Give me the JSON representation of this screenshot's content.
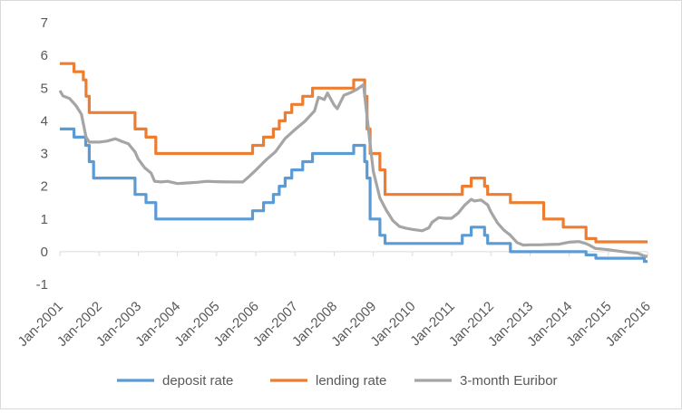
{
  "chart_data": {
    "type": "line",
    "title": "",
    "xlabel": "",
    "ylabel": "",
    "x_range": [
      2001.0,
      2016.0
    ],
    "ylim": [
      -1,
      7
    ],
    "y_ticks": [
      -1,
      0,
      1,
      2,
      3,
      4,
      5,
      6,
      7
    ],
    "x_ticks": [
      {
        "label": "Jan-2001",
        "value": 2001.0
      },
      {
        "label": "Jan-2002",
        "value": 2002.0
      },
      {
        "label": "Jan-2003",
        "value": 2003.0
      },
      {
        "label": "Jan-2004",
        "value": 2004.0
      },
      {
        "label": "Jan-2005",
        "value": 2005.0
      },
      {
        "label": "Jan-2006",
        "value": 2006.0
      },
      {
        "label": "Jan-2007",
        "value": 2007.0
      },
      {
        "label": "Jan-2008",
        "value": 2008.0
      },
      {
        "label": "Jan-2009",
        "value": 2009.0
      },
      {
        "label": "Jan-2010",
        "value": 2010.0
      },
      {
        "label": "Jan-2011",
        "value": 2011.0
      },
      {
        "label": "Jan-2012",
        "value": 2012.0
      },
      {
        "label": "Jan-2013",
        "value": 2013.0
      },
      {
        "label": "Jan-2014",
        "value": 2014.0
      },
      {
        "label": "Jan-2015",
        "value": 2015.0
      },
      {
        "label": "Jan-2016",
        "value": 2016.0
      }
    ],
    "grid": false,
    "legend_position": "bottom",
    "series": [
      {
        "name": "deposit rate",
        "color": "#5b9bd5",
        "step": true,
        "points": [
          [
            2001.0,
            3.75
          ],
          [
            2001.36,
            3.5
          ],
          [
            2001.5,
            3.5
          ],
          [
            2001.66,
            3.25
          ],
          [
            2001.75,
            2.75
          ],
          [
            2001.86,
            2.25
          ],
          [
            2002.92,
            1.75
          ],
          [
            2003.2,
            1.5
          ],
          [
            2003.45,
            1.0
          ],
          [
            2005.92,
            1.25
          ],
          [
            2006.2,
            1.5
          ],
          [
            2006.45,
            1.75
          ],
          [
            2006.6,
            2.0
          ],
          [
            2006.75,
            2.25
          ],
          [
            2006.92,
            2.5
          ],
          [
            2007.2,
            2.75
          ],
          [
            2007.45,
            3.0
          ],
          [
            2008.5,
            3.25
          ],
          [
            2008.78,
            2.75
          ],
          [
            2008.84,
            2.25
          ],
          [
            2008.92,
            1.0
          ],
          [
            2009.05,
            1.0
          ],
          [
            2009.17,
            0.5
          ],
          [
            2009.3,
            0.25
          ],
          [
            2011.27,
            0.5
          ],
          [
            2011.5,
            0.75
          ],
          [
            2011.84,
            0.5
          ],
          [
            2011.92,
            0.25
          ],
          [
            2012.5,
            0.0
          ],
          [
            2014.43,
            -0.1
          ],
          [
            2014.68,
            -0.2
          ],
          [
            2015.92,
            -0.3
          ],
          [
            2016.0,
            -0.3
          ]
        ]
      },
      {
        "name": "lending rate",
        "color": "#ed7d31",
        "step": true,
        "points": [
          [
            2001.0,
            5.75
          ],
          [
            2001.36,
            5.5
          ],
          [
            2001.6,
            5.25
          ],
          [
            2001.67,
            4.75
          ],
          [
            2001.75,
            4.25
          ],
          [
            2002.92,
            3.75
          ],
          [
            2003.2,
            3.5
          ],
          [
            2003.45,
            3.0
          ],
          [
            2005.92,
            3.25
          ],
          [
            2006.2,
            3.5
          ],
          [
            2006.45,
            3.75
          ],
          [
            2006.6,
            4.0
          ],
          [
            2006.75,
            4.25
          ],
          [
            2006.92,
            4.5
          ],
          [
            2007.2,
            4.75
          ],
          [
            2007.45,
            5.0
          ],
          [
            2008.5,
            5.25
          ],
          [
            2008.78,
            4.75
          ],
          [
            2008.84,
            3.75
          ],
          [
            2008.92,
            3.0
          ],
          [
            2009.05,
            3.0
          ],
          [
            2009.17,
            2.5
          ],
          [
            2009.3,
            1.75
          ],
          [
            2011.27,
            2.0
          ],
          [
            2011.5,
            2.25
          ],
          [
            2011.84,
            2.0
          ],
          [
            2011.92,
            1.75
          ],
          [
            2012.5,
            1.5
          ],
          [
            2013.35,
            1.0
          ],
          [
            2013.85,
            0.75
          ],
          [
            2014.43,
            0.4
          ],
          [
            2014.68,
            0.3
          ],
          [
            2016.0,
            0.3
          ]
        ]
      },
      {
        "name": "3-month Euribor",
        "color": "#a5a5a5",
        "step": false,
        "points": [
          [
            2001.0,
            4.92
          ],
          [
            2001.08,
            4.76
          ],
          [
            2001.25,
            4.68
          ],
          [
            2001.42,
            4.45
          ],
          [
            2001.55,
            4.2
          ],
          [
            2001.67,
            3.5
          ],
          [
            2001.75,
            3.35
          ],
          [
            2002.0,
            3.35
          ],
          [
            2002.2,
            3.38
          ],
          [
            2002.42,
            3.45
          ],
          [
            2002.58,
            3.37
          ],
          [
            2002.75,
            3.3
          ],
          [
            2002.92,
            3.05
          ],
          [
            2003.0,
            2.83
          ],
          [
            2003.17,
            2.56
          ],
          [
            2003.33,
            2.4
          ],
          [
            2003.42,
            2.15
          ],
          [
            2003.58,
            2.13
          ],
          [
            2003.75,
            2.15
          ],
          [
            2004.0,
            2.08
          ],
          [
            2004.25,
            2.1
          ],
          [
            2004.5,
            2.12
          ],
          [
            2004.75,
            2.15
          ],
          [
            2005.0,
            2.14
          ],
          [
            2005.33,
            2.13
          ],
          [
            2005.67,
            2.13
          ],
          [
            2005.83,
            2.3
          ],
          [
            2006.0,
            2.49
          ],
          [
            2006.25,
            2.79
          ],
          [
            2006.5,
            3.05
          ],
          [
            2006.75,
            3.46
          ],
          [
            2007.0,
            3.73
          ],
          [
            2007.25,
            3.98
          ],
          [
            2007.5,
            4.3
          ],
          [
            2007.6,
            4.72
          ],
          [
            2007.75,
            4.65
          ],
          [
            2007.83,
            4.85
          ],
          [
            2008.0,
            4.48
          ],
          [
            2008.08,
            4.37
          ],
          [
            2008.25,
            4.78
          ],
          [
            2008.42,
            4.86
          ],
          [
            2008.58,
            4.96
          ],
          [
            2008.75,
            5.1
          ],
          [
            2008.83,
            4.24
          ],
          [
            2008.92,
            3.29
          ],
          [
            2009.0,
            2.46
          ],
          [
            2009.17,
            1.64
          ],
          [
            2009.33,
            1.27
          ],
          [
            2009.5,
            0.95
          ],
          [
            2009.67,
            0.77
          ],
          [
            2009.83,
            0.72
          ],
          [
            2010.0,
            0.68
          ],
          [
            2010.25,
            0.64
          ],
          [
            2010.42,
            0.73
          ],
          [
            2010.5,
            0.9
          ],
          [
            2010.67,
            1.04
          ],
          [
            2010.83,
            1.02
          ],
          [
            2011.0,
            1.02
          ],
          [
            2011.17,
            1.18
          ],
          [
            2011.33,
            1.42
          ],
          [
            2011.5,
            1.6
          ],
          [
            2011.58,
            1.55
          ],
          [
            2011.75,
            1.58
          ],
          [
            2011.92,
            1.43
          ],
          [
            2012.0,
            1.22
          ],
          [
            2012.17,
            0.88
          ],
          [
            2012.33,
            0.66
          ],
          [
            2012.5,
            0.5
          ],
          [
            2012.67,
            0.28
          ],
          [
            2012.83,
            0.2
          ],
          [
            2013.0,
            0.21
          ],
          [
            2013.25,
            0.21
          ],
          [
            2013.5,
            0.22
          ],
          [
            2013.75,
            0.23
          ],
          [
            2013.92,
            0.27
          ],
          [
            2014.0,
            0.29
          ],
          [
            2014.25,
            0.31
          ],
          [
            2014.42,
            0.25
          ],
          [
            2014.5,
            0.21
          ],
          [
            2014.67,
            0.1
          ],
          [
            2015.0,
            0.06
          ],
          [
            2015.25,
            0.02
          ],
          [
            2015.5,
            -0.02
          ],
          [
            2015.75,
            -0.05
          ],
          [
            2015.92,
            -0.13
          ],
          [
            2016.0,
            -0.15
          ]
        ]
      }
    ]
  }
}
